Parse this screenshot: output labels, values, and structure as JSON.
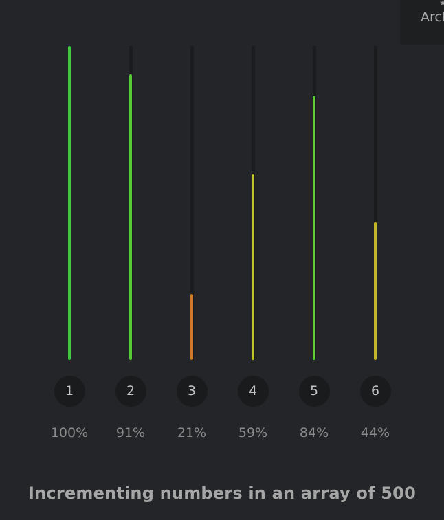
{
  "archive": {
    "label": "Arch"
  },
  "chart_data": {
    "type": "bar",
    "title": "Incrementing numbers in an array of 500",
    "categories": [
      "1",
      "2",
      "3",
      "4",
      "5",
      "6"
    ],
    "values": [
      100,
      91,
      21,
      59,
      84,
      44
    ],
    "value_labels": [
      "100%",
      "91%",
      "21%",
      "59%",
      "84%",
      "44%"
    ],
    "ylim": [
      0,
      100
    ],
    "grid": false,
    "colors": [
      "#3fc93c",
      "#58cc35",
      "#d47726",
      "#bcc52a",
      "#64cc34",
      "#c4b62b"
    ]
  }
}
